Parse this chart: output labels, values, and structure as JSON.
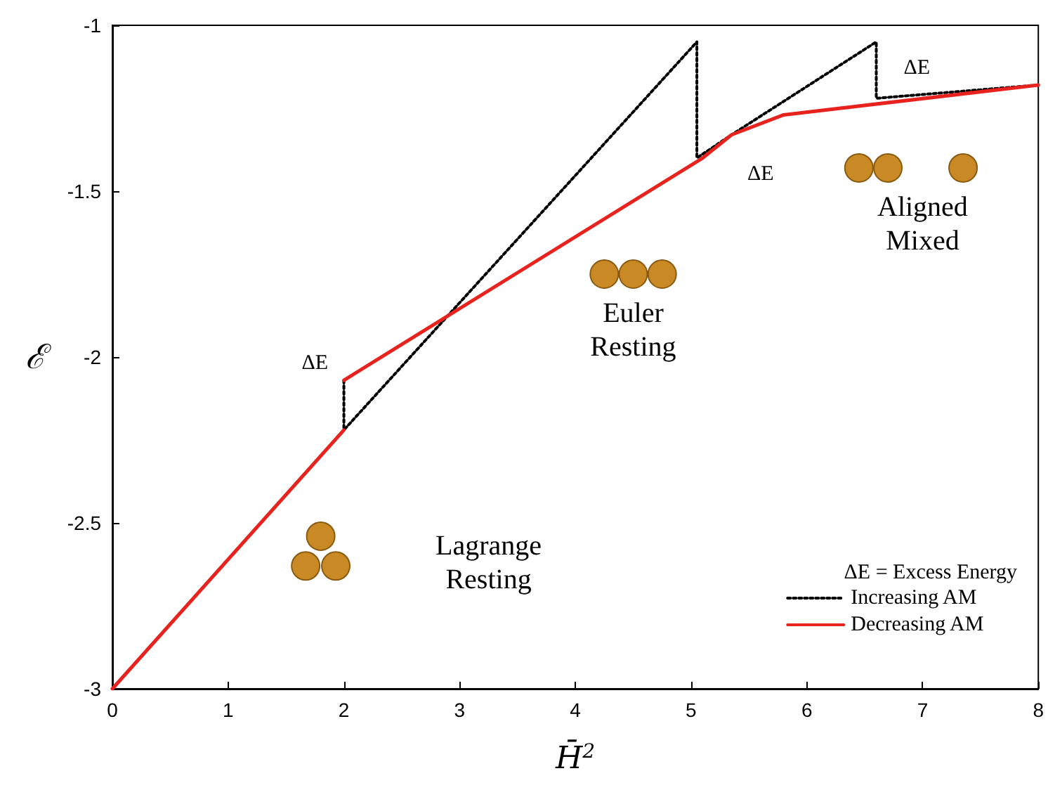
{
  "chart_data": {
    "type": "line",
    "xlabel": "H̄$^{2}$",
    "ylabel": "ℰ",
    "legend_title": "ΔE = Excess Energy",
    "legend": "bottom right",
    "grid": false,
    "marker": "none",
    "xlim": [
      0,
      8
    ],
    "xticks": [
      0,
      1,
      2,
      3,
      4,
      5,
      6,
      7,
      8
    ],
    "ylim": [
      -3,
      -1
    ],
    "yticks": [
      -3,
      -2.5,
      -2,
      -1.5,
      -1
    ],
    "series": [
      {
        "name": "Increasing AM",
        "color": "#000000",
        "line_style": "dotted",
        "x": [
          0,
          2,
          5.05,
          5.05,
          5.35,
          6.6,
          6.6,
          8
        ],
        "values": [
          -3,
          -2.22,
          -1.05,
          -1.4,
          -1.33,
          -1.05,
          -1.22,
          -1.18
        ]
      },
      {
        "color": "#000000",
        "line_style": "dotted",
        "x": [
          2,
          2
        ],
        "values": [
          -2.07,
          -2.22
        ]
      },
      {
        "name": "Decreasing AM",
        "color": "#e8231e",
        "line_style": "solid",
        "x": [
          8,
          5.8,
          5.35,
          5.1,
          2
        ],
        "values": [
          -1.18,
          -1.27,
          -1.33,
          -1.4,
          -2.07
        ]
      },
      {
        "color": "#e8231e",
        "line_style": "solid",
        "x": [
          2,
          0
        ],
        "values": [
          -2.22,
          -3
        ]
      }
    ],
    "annotations": [
      "ΔE",
      "ΔE",
      "ΔE",
      "Lagrange\nResting",
      "Euler\nResting",
      "Aligned\nMixed"
    ]
  }
}
